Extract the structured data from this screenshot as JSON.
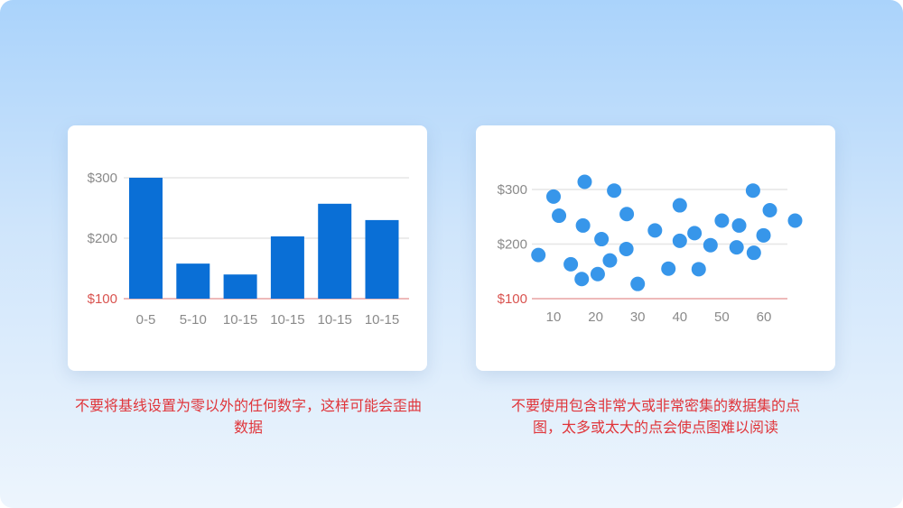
{
  "colors": {
    "bar": "#0a6fd6",
    "dot": "#3796ea",
    "baseline": "#e8a3a3",
    "grid": "#e6e6e6",
    "caption": "#e0353a",
    "tick": "#8a8a8a",
    "baseline_label": "#d9534f"
  },
  "chart_data": [
    {
      "type": "bar",
      "categories": [
        "0-5",
        "5-10",
        "10-15",
        "10-15",
        "10-15",
        "10-15"
      ],
      "values": [
        300,
        158,
        140,
        203,
        257,
        230
      ],
      "yticks": [
        "$100",
        "$200",
        "$300"
      ],
      "ytick_values": [
        100,
        200,
        300
      ],
      "ylim": [
        100,
        300
      ],
      "grid": true,
      "baseline": 100
    },
    {
      "type": "scatter",
      "x": [
        6.4,
        10,
        11.3,
        14.1,
        17.4,
        17,
        16.7,
        20.5,
        21.4,
        23.4,
        24.4,
        27.4,
        27.3,
        30,
        34.1,
        37.3,
        40,
        40,
        43.5,
        44.5,
        47.3,
        50,
        54.1,
        53.5,
        57.4,
        57.6,
        59.9,
        61.4,
        67.4
      ],
      "y": [
        180,
        287,
        252,
        163,
        314,
        234,
        136,
        145,
        209,
        170,
        298,
        255,
        191,
        127,
        225,
        155,
        271,
        206,
        220,
        154,
        198,
        243,
        234,
        194,
        298,
        184,
        216,
        262,
        243
      ],
      "xticks": [
        "10",
        "20",
        "30",
        "40",
        "50",
        "60"
      ],
      "xtick_values": [
        10,
        20,
        30,
        40,
        50,
        60
      ],
      "yticks": [
        "$100",
        "$200",
        "$300"
      ],
      "ytick_values": [
        100,
        200,
        300
      ],
      "xlim": [
        5,
        68
      ],
      "ylim": [
        100,
        300
      ],
      "grid": true,
      "baseline": 100
    }
  ],
  "captions": {
    "left": "不要将基线设置为零以外的任何数字，这样可能会歪曲数据",
    "right": "不要使用包含非常大或非常密集的数据集的点图，太多或太大的点会使点图难以阅读"
  }
}
